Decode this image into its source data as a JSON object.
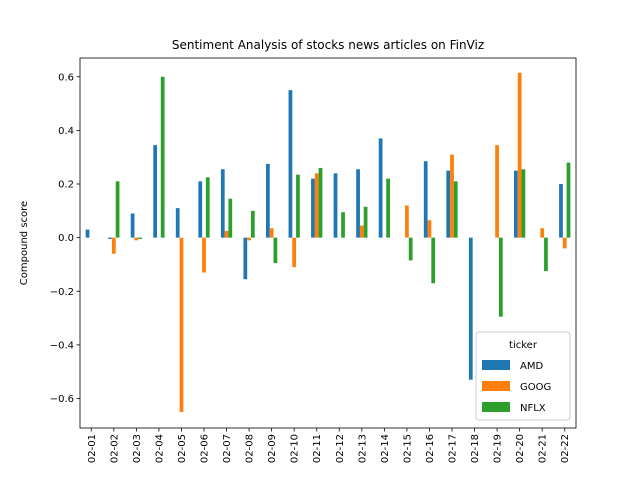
{
  "chart_data": {
    "type": "bar",
    "title": "Sentiment Analysis of stocks news articles on FinViz",
    "xlabel": "",
    "ylabel": "Compound score",
    "ylim": [
      -0.71,
      0.67
    ],
    "yticks": [
      -0.6,
      -0.4,
      -0.2,
      0.0,
      0.2,
      0.4,
      0.6
    ],
    "ytick_labels": [
      "−0.6",
      "−0.4",
      "−0.2",
      "0.0",
      "0.2",
      "0.4",
      "0.6"
    ],
    "grid": false,
    "legend": {
      "title": "ticker",
      "placement": "lower right"
    },
    "categories": [
      "02-01",
      "02-02",
      "02-03",
      "02-04",
      "02-05",
      "02-06",
      "02-07",
      "02-08",
      "02-09",
      "02-10",
      "02-11",
      "02-12",
      "02-13",
      "02-14",
      "02-15",
      "02-16",
      "02-17",
      "02-18",
      "02-19",
      "02-20",
      "02-21",
      "02-22"
    ],
    "series": [
      {
        "name": "AMD",
        "color": "#1f77b4",
        "values": [
          0.03,
          -0.005,
          0.09,
          0.345,
          0.11,
          0.21,
          0.255,
          -0.155,
          0.275,
          0.55,
          0.22,
          0.24,
          0.255,
          0.37,
          0.0,
          0.285,
          0.25,
          -0.53,
          0.0,
          0.25,
          0.0,
          0.2
        ]
      },
      {
        "name": "GOOG",
        "color": "#ff7f0e",
        "values": [
          0.0,
          -0.06,
          -0.01,
          0.0,
          -0.65,
          -0.13,
          0.025,
          -0.01,
          0.035,
          -0.11,
          0.24,
          0.0,
          0.045,
          0.0,
          0.12,
          0.065,
          0.31,
          0.0,
          0.345,
          0.615,
          0.035,
          -0.04
        ]
      },
      {
        "name": "NFLX",
        "color": "#2ca02c",
        "values": [
          0.0,
          0.21,
          -0.005,
          0.6,
          0.0,
          0.225,
          0.145,
          0.1,
          -0.095,
          0.235,
          0.26,
          0.095,
          0.115,
          0.22,
          -0.085,
          -0.17,
          0.21,
          0.0,
          -0.295,
          0.255,
          -0.125,
          0.28
        ]
      }
    ]
  }
}
